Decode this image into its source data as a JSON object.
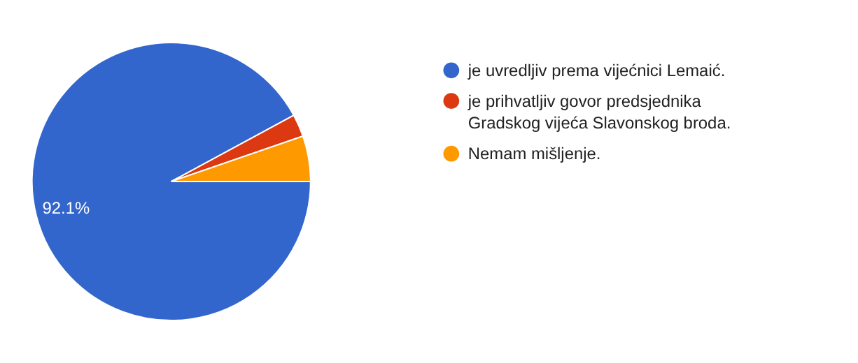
{
  "chart_data": {
    "type": "pie",
    "categories": [
      "je uvredljiv prema vijećnici Lemaić.",
      "je prihvatljiv govor predsjednika Gradskog vijeća Slavonskog broda.",
      "Nemam mišljenje."
    ],
    "values": [
      92.1,
      2.6,
      5.3
    ],
    "colors": [
      "#3366cc",
      "#dc3912",
      "#ff9900"
    ],
    "value_labels": [
      "92.1%",
      null,
      null
    ],
    "legend": "right"
  }
}
